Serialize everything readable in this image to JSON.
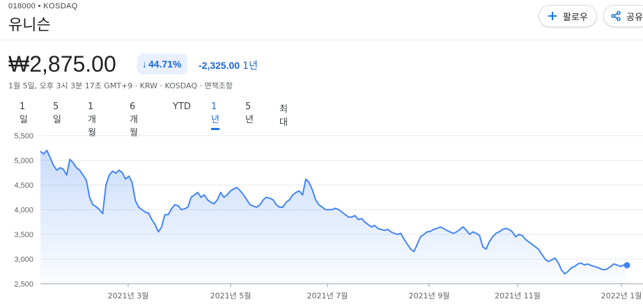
{
  "header": {
    "ticker_line": "018000 • KOSDAQ",
    "company_name": "유니슨",
    "follow_label": "팔로우",
    "share_label": "공유"
  },
  "quote": {
    "price": "₩2,875.00",
    "change_percent": "44.71%",
    "change_direction": "down",
    "change_abs": "-2,325.00",
    "change_period": "1년",
    "meta": "1월 5일, 오후 3시 3분 17초 GMT+9 · KRW · KOSDAQ · 면책조항"
  },
  "ranges": {
    "tabs": [
      "1일",
      "5일",
      "1개월",
      "6개월",
      "YTD",
      "1년",
      "5년",
      "최대"
    ],
    "active": "1년"
  },
  "colors": {
    "accent": "#1a73e8",
    "negative": "#1967d2",
    "line": "#4285f4"
  },
  "chart_data": {
    "type": "area",
    "x_tick_labels": [
      "2021년 3월",
      "2021년 5월",
      "2021년 7월",
      "2021년 9월",
      "2021년 11월",
      "2022년 1월"
    ],
    "y_tick_labels": [
      "5,500",
      "5,000",
      "4,500",
      "4,000",
      "3,500",
      "3,000",
      "2,500"
    ],
    "ylim": [
      2500,
      5500
    ],
    "grid": true,
    "series": [
      {
        "values": [
          5180,
          5130,
          5200,
          5050,
          4900,
          4800,
          4850,
          4820,
          4700,
          5020,
          4950,
          4850,
          4800,
          4700,
          4600,
          4250,
          4100,
          4060,
          4000,
          3920,
          4500,
          4700,
          4780,
          4740,
          4800,
          4750,
          4620,
          4680,
          4550,
          4180,
          4050,
          4000,
          3950,
          3930,
          3800,
          3700,
          3550,
          3650,
          3900,
          3900,
          4020,
          4100,
          4080,
          4000,
          4020,
          4050,
          4250,
          4300,
          4350,
          4250,
          4300,
          4200,
          4150,
          4120,
          4200,
          4350,
          4250,
          4300,
          4380,
          4420,
          4450,
          4380,
          4300,
          4200,
          4100,
          4070,
          4050,
          4100,
          4200,
          4250,
          4230,
          4200,
          4100,
          4050,
          4050,
          4150,
          4200,
          4300,
          4350,
          4380,
          4300,
          4620,
          4550,
          4400,
          4200,
          4100,
          4050,
          4000,
          4000,
          4000,
          4030,
          4000,
          3950,
          3900,
          3850,
          3850,
          3880,
          3800,
          3820,
          3750,
          3700,
          3650,
          3680,
          3620,
          3600,
          3580,
          3600,
          3550,
          3520,
          3500,
          3520,
          3400,
          3300,
          3200,
          3150,
          3300,
          3450,
          3500,
          3550,
          3560,
          3600,
          3620,
          3650,
          3620,
          3580,
          3550,
          3520,
          3550,
          3600,
          3650,
          3580,
          3500,
          3550,
          3520,
          3480,
          3250,
          3200,
          3350,
          3450,
          3520,
          3550,
          3600,
          3620,
          3600,
          3550,
          3450,
          3500,
          3480,
          3400,
          3350,
          3300,
          3250,
          3200,
          3100,
          3000,
          2950,
          2980,
          3020,
          2930,
          2780,
          2700,
          2750,
          2820,
          2850,
          2900,
          2920,
          2880,
          2900,
          2870,
          2850,
          2830,
          2800,
          2780,
          2800,
          2850,
          2900,
          2880,
          2850,
          2880,
          2875
        ],
        "x_range": [
          "2021년 1월",
          "2022년 1월"
        ]
      }
    ],
    "last_value": 2875
  }
}
